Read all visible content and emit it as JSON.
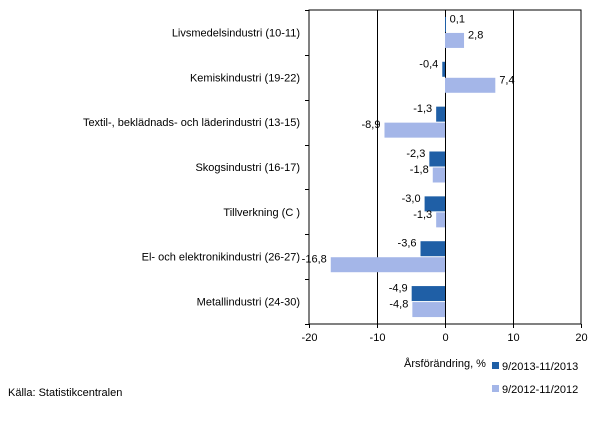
{
  "chart_data": {
    "type": "bar",
    "orientation": "horizontal",
    "categories": [
      "Livsmedelsindustri (10-11)",
      "Kemiskindustri (19-22)",
      "Textil-, beklädnads- och läderindustri (13-15)",
      "Skogsindustri (16-17)",
      "Tillverkning (C )",
      "El- och elektronikindustri (26-27)",
      "Metallindustri (24-30)"
    ],
    "series": [
      {
        "name": "9/2013-11/2013",
        "color": "#1f5fa6",
        "values": [
          0.1,
          -0.4,
          -1.3,
          -2.3,
          -3.0,
          -3.6,
          -4.9
        ],
        "labels": [
          "0,1",
          "-0,4",
          "-1,3",
          "-2,3",
          "-3,0",
          "-3,6",
          "-4,9"
        ]
      },
      {
        "name": "9/2012-11/2012",
        "color": "#a4b6e8",
        "values": [
          2.8,
          7.4,
          -8.9,
          -1.8,
          -1.3,
          -16.8,
          -4.8
        ],
        "labels": [
          "2,8",
          "7,4",
          "-8,9",
          "-1,8",
          "-1,3",
          "-16,8",
          "-4,8"
        ]
      }
    ],
    "xlabel": "Årsförändring, %",
    "xlim": [
      -20,
      20
    ],
    "xticks": [
      -20,
      -10,
      0,
      10,
      20
    ],
    "xtick_labels": [
      "-20",
      "-10",
      "0",
      "10",
      "20"
    ],
    "grid": "vertical",
    "legend_position": "bottom-right"
  },
  "source": "Källa: Statistikcentralen"
}
